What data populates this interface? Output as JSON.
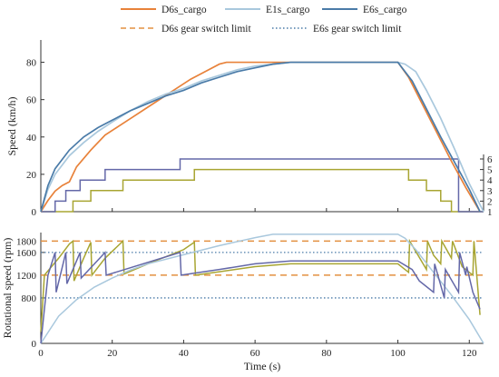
{
  "colors": {
    "d6s": "#E8823A",
    "e1s": "#A9C8DD",
    "e6s": "#4A7BA8",
    "gearD6s": "#A8A532",
    "gearE6s": "#6468A8",
    "limitD6s": "#E39040",
    "limitE6s": "#4A7BA8",
    "axis": "#333333"
  },
  "legend": {
    "d6s": "D6s_cargo",
    "e1s": "E1s_cargo",
    "e6s": "E6s_cargo",
    "d6s_limit": "D6s gear switch limit",
    "e6s_limit": "E6s gear switch limit"
  },
  "chart_data": [
    {
      "type": "line",
      "ylabel": "Speed (km/h)",
      "xlim": [
        0,
        124
      ],
      "ylim": [
        0,
        90
      ],
      "yticks": [
        0,
        20,
        40,
        60,
        80
      ],
      "y2ticks": [
        "1",
        "2",
        "3",
        "4",
        "5",
        "6"
      ],
      "series": [
        {
          "name": "D6s_cargo",
          "x": [
            0,
            2,
            4,
            6,
            8,
            10,
            14,
            18,
            22,
            26,
            30,
            34,
            38,
            42,
            46,
            50,
            52,
            60,
            70,
            80,
            90,
            100,
            103,
            107,
            111,
            115,
            119,
            123
          ],
          "y": [
            0,
            6,
            11,
            14,
            16,
            24,
            33,
            41,
            46,
            51,
            56,
            61,
            66,
            71,
            75,
            79,
            80,
            80,
            80,
            80,
            80,
            80,
            72,
            57,
            42,
            27,
            13,
            0
          ]
        },
        {
          "name": "E1s_cargo",
          "x": [
            0,
            2,
            4,
            8,
            12,
            16,
            20,
            25,
            30,
            35,
            40,
            45,
            50,
            55,
            60,
            65,
            70,
            80,
            90,
            100,
            102,
            105,
            108,
            112,
            116,
            120,
            124
          ],
          "y": [
            0,
            12,
            20,
            30,
            37,
            43,
            48,
            54,
            59,
            63,
            66,
            70,
            73,
            76,
            78,
            79,
            80,
            80,
            80,
            80,
            79,
            75,
            65,
            50,
            33,
            15,
            0
          ]
        },
        {
          "name": "E6s_cargo",
          "x": [
            0,
            2,
            4,
            8,
            12,
            16,
            20,
            25,
            30,
            35,
            40,
            45,
            50,
            55,
            60,
            65,
            70,
            80,
            90,
            100,
            104,
            108,
            112,
            116,
            120,
            123
          ],
          "y": [
            0,
            14,
            23,
            33,
            40,
            45,
            49,
            54,
            58,
            62,
            65,
            69,
            72,
            75,
            77,
            79,
            80,
            80,
            80,
            80,
            70,
            55,
            40,
            26,
            12,
            0
          ]
        }
      ],
      "gear_series": [
        {
          "name": "D6s_cargo gear",
          "x": [
            0,
            9,
            9,
            14,
            14,
            23,
            23,
            40,
            40,
            43,
            43,
            103,
            103,
            108,
            108,
            112,
            112,
            115,
            115,
            121,
            121,
            124
          ],
          "gear": [
            1,
            1,
            2,
            2,
            3,
            3,
            4,
            4,
            4,
            4,
            5,
            5,
            4,
            4,
            3,
            3,
            2,
            2,
            1,
            1,
            1,
            1
          ]
        },
        {
          "name": "E6s_cargo gear",
          "x": [
            0,
            4,
            4,
            7,
            7,
            11,
            11,
            18,
            18,
            39,
            39,
            117,
            117,
            121,
            121,
            124
          ],
          "gear": [
            1,
            1,
            2,
            2,
            3,
            3,
            4,
            4,
            5,
            5,
            6,
            6,
            1,
            1,
            1,
            1
          ]
        }
      ]
    },
    {
      "type": "line",
      "xlabel": "Time (s)",
      "ylabel": "Rotational speed (rpm)",
      "xlim": [
        0,
        124
      ],
      "ylim": [
        0,
        1950
      ],
      "xticks": [
        0,
        20,
        40,
        60,
        80,
        100,
        120
      ],
      "yticks": [
        0,
        800,
        1200,
        1600,
        1800
      ],
      "limits": [
        {
          "name": "D6s gear switch limit",
          "values": [
            1200,
            1800
          ]
        },
        {
          "name": "E6s gear switch limit",
          "values": [
            800,
            1600
          ]
        }
      ],
      "series": [
        {
          "name": "D6s_cargo",
          "x": [
            0,
            1,
            3,
            5,
            8,
            9,
            9.3,
            12,
            14,
            14.3,
            18,
            23,
            23.3,
            30,
            40,
            43,
            43.3,
            60,
            70,
            100,
            103,
            103.3,
            108,
            108.3,
            110,
            112,
            112.3,
            115,
            115.3,
            118,
            121,
            121.3,
            123
          ],
          "y": [
            200,
            1200,
            1350,
            1500,
            1750,
            1800,
            1100,
            1500,
            1780,
            1200,
            1500,
            1800,
            1220,
            1400,
            1650,
            1780,
            1200,
            1350,
            1400,
            1400,
            1250,
            1800,
            1300,
            1800,
            1550,
            1400,
            1800,
            1500,
            1800,
            1350,
            1200,
            1800,
            500
          ]
        },
        {
          "name": "E1s_cargo",
          "x": [
            0,
            5,
            10,
            15,
            20,
            25,
            30,
            40,
            50,
            60,
            65,
            70,
            80,
            90,
            100,
            102,
            105,
            110,
            115,
            120,
            124
          ],
          "y": [
            0,
            480,
            770,
            990,
            1150,
            1290,
            1400,
            1560,
            1720,
            1860,
            1920,
            1920,
            1920,
            1920,
            1920,
            1850,
            1650,
            1250,
            850,
            420,
            0
          ]
        },
        {
          "name": "E6s_cargo",
          "x": [
            0,
            2,
            4,
            4.3,
            7,
            7.3,
            11,
            11.3,
            18,
            18.3,
            39,
            39.3,
            50,
            60,
            70,
            100,
            104,
            106,
            110,
            110.3,
            113,
            113.3,
            117,
            117.3,
            119,
            119.3,
            121,
            123
          ],
          "y": [
            0,
            1200,
            1600,
            900,
            1600,
            1050,
            1600,
            1150,
            1600,
            1200,
            1600,
            1200,
            1300,
            1400,
            1450,
            1450,
            1300,
            1100,
            900,
            1400,
            800,
            1300,
            900,
            1600,
            1200,
            1350,
            900,
            600
          ]
        }
      ]
    }
  ]
}
